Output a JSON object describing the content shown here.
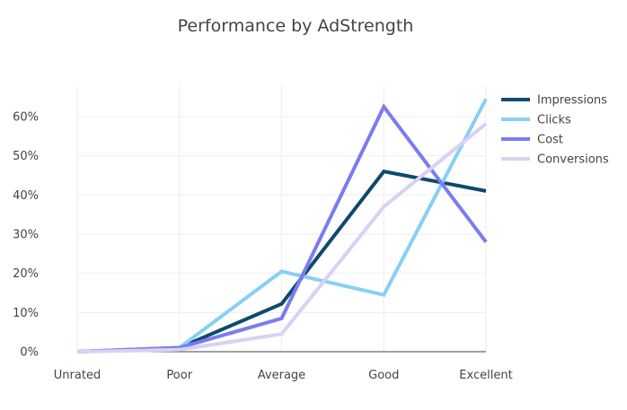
{
  "chart_data": {
    "type": "line",
    "title": "Performance by AdStrength",
    "xlabel": "",
    "ylabel": "",
    "categories": [
      "Unrated",
      "Poor",
      "Average",
      "Good",
      "Excellent"
    ],
    "ylim": [
      0,
      0.68
    ],
    "yticks": [
      0,
      0.1,
      0.2,
      0.3,
      0.4,
      0.5,
      0.6
    ],
    "ytick_labels": [
      "0%",
      "10%",
      "20%",
      "30%",
      "40%",
      "50%",
      "60%"
    ],
    "grid": true,
    "legend_position": "top-right",
    "series": [
      {
        "name": "Impressions",
        "color": "#0d4a6e",
        "values": [
          0.0,
          0.01,
          0.122,
          0.46,
          0.41
        ]
      },
      {
        "name": "Clicks",
        "color": "#87cff5",
        "values": [
          0.0,
          0.01,
          0.205,
          0.145,
          0.645
        ]
      },
      {
        "name": "Cost",
        "color": "#7b7cf0",
        "values": [
          0.0,
          0.01,
          0.085,
          0.625,
          0.28
        ]
      },
      {
        "name": "Conversions",
        "color": "#d9d0f3",
        "values": [
          0.0,
          0.005,
          0.045,
          0.37,
          0.582
        ]
      }
    ]
  }
}
